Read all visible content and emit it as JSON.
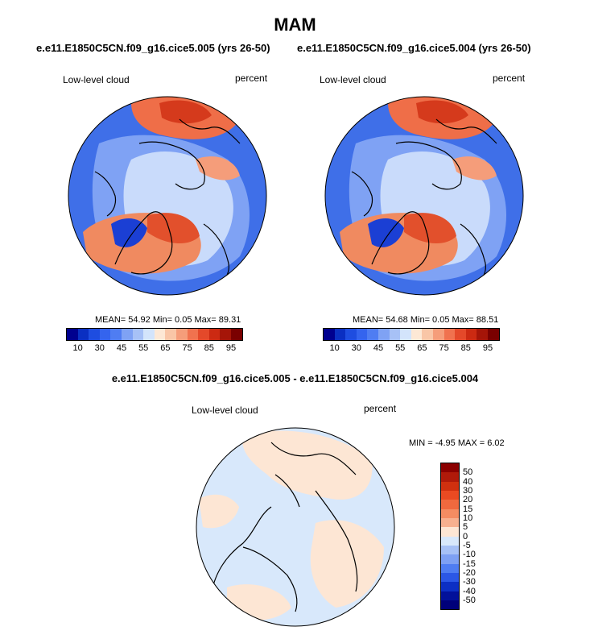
{
  "title": "MAM",
  "panels": [
    {
      "case": "e.e11.E1850C5CN.f09_g16.cice5.005 (yrs 26-50)",
      "field": "Low-level cloud",
      "units": "percent",
      "stats": "MEAN=  54.92  Min=   0.05  Max=  89.31",
      "mean": 54.92,
      "min": 0.05,
      "max": 89.31
    },
    {
      "case": "e.e11.E1850C5CN.f09_g16.cice5.004 (yrs 26-50)",
      "field": "Low-level cloud",
      "units": "percent",
      "stats": "MEAN=  54.68  Min=   0.05  Max=  88.51",
      "mean": 54.68,
      "min": 0.05,
      "max": 88.51
    }
  ],
  "diff": {
    "title": "e.e11.E1850C5CN.f09_g16.cice5.005 - e.e11.E1850C5CN.f09_g16.cice5.004",
    "field": "Low-level cloud",
    "units": "percent",
    "stats": "MIN = -4.95 MAX =  6.02",
    "min": -4.95,
    "max": 6.02
  },
  "colorbar_abs": {
    "ticks": [
      "10",
      "30",
      "45",
      "55",
      "65",
      "75",
      "85",
      "95"
    ],
    "colors": [
      "#00008f",
      "#0a2fc2",
      "#1e4de0",
      "#3464ee",
      "#4f7df2",
      "#7fa2f4",
      "#a7c1f6",
      "#d3e4fb",
      "#fde8d5",
      "#f9c6a7",
      "#f59d7a",
      "#f0724f",
      "#e4492a",
      "#cc2a12",
      "#a51508",
      "#7a0000"
    ]
  },
  "colorbar_diff": {
    "ticks": [
      "50",
      "40",
      "30",
      "20",
      "15",
      "10",
      "5",
      "0",
      "-5",
      "-10",
      "-15",
      "-20",
      "-30",
      "-40",
      "-50"
    ],
    "colors": [
      "#8b0000",
      "#b01a0a",
      "#d0300f",
      "#ea4a22",
      "#f0693e",
      "#f48c62",
      "#f7b08f",
      "#fde6d4",
      "#d8e8fb",
      "#a7c1f6",
      "#7ea0f3",
      "#4f7df2",
      "#2b57e6",
      "#0c2fc4",
      "#02119a",
      "#00007a"
    ]
  }
}
